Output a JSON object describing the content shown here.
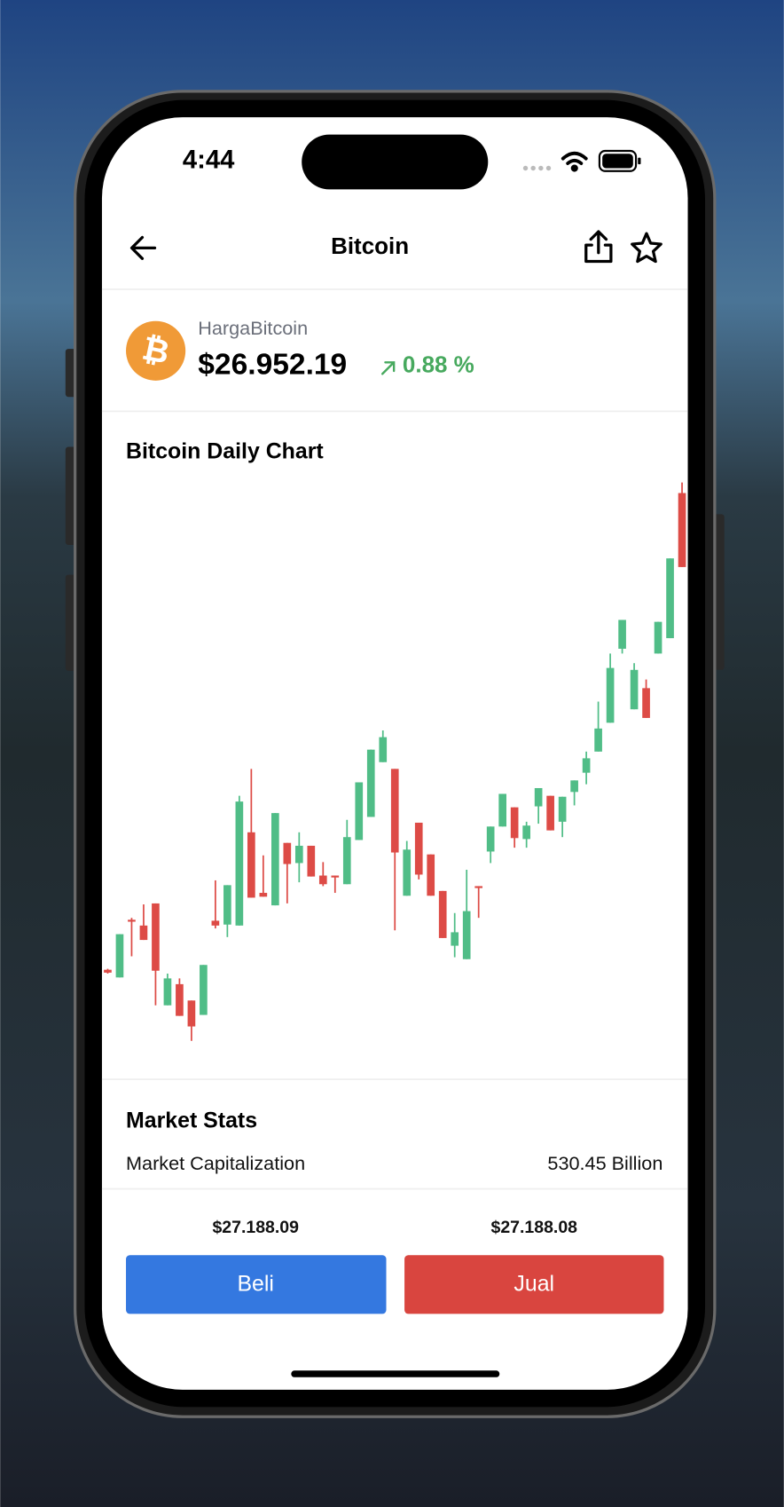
{
  "status_bar": {
    "time": "4:44"
  },
  "header": {
    "title": "Bitcoin"
  },
  "coin": {
    "label": "HargaBitcoin",
    "price": "$26.952.19",
    "change": "0.88 %"
  },
  "chart_data": {
    "type": "candlestick",
    "title": "Bitcoin Daily Chart",
    "up_color": "#50bd87",
    "down_color": "#dd4b46",
    "open": [
      91,
      83,
      143,
      137,
      160,
      54,
      76,
      59,
      44,
      142,
      138,
      137,
      234,
      171,
      158,
      223,
      202,
      220,
      189,
      189,
      180,
      226,
      250,
      307,
      300,
      168,
      244,
      211,
      173,
      116,
      102,
      178,
      214,
      240,
      260,
      227,
      261,
      272,
      245,
      276,
      296,
      318,
      348,
      425,
      362,
      384,
      420,
      436,
      587
    ],
    "high": [
      92,
      128,
      145,
      159,
      160,
      87,
      82,
      59,
      96,
      184,
      179,
      272,
      300,
      210,
      254,
      223,
      234,
      220,
      203,
      189,
      247,
      286,
      320,
      340,
      300,
      225,
      244,
      211,
      173,
      150,
      195,
      178,
      240,
      274,
      260,
      245,
      280,
      272,
      271,
      288,
      318,
      370,
      420,
      455,
      410,
      393,
      453,
      519,
      598
    ],
    "low": [
      87,
      83,
      105,
      122,
      54,
      54,
      43,
      17,
      44,
      134,
      125,
      137,
      166,
      167,
      158,
      160,
      182,
      188,
      178,
      171,
      180,
      226,
      250,
      307,
      132,
      168,
      185,
      168,
      124,
      104,
      102,
      145,
      202,
      240,
      218,
      218,
      243,
      236,
      229,
      262,
      284,
      318,
      348,
      420,
      362,
      353,
      420,
      436,
      510
    ],
    "close": [
      88,
      128,
      141,
      122,
      90,
      82,
      43,
      32,
      96,
      137,
      179,
      266,
      166,
      167,
      254,
      201,
      220,
      188,
      180,
      187,
      229,
      286,
      320,
      333,
      213,
      216,
      190,
      168,
      124,
      130,
      152,
      176,
      240,
      274,
      228,
      241,
      280,
      236,
      271,
      288,
      311,
      342,
      405,
      455,
      403,
      353,
      453,
      519,
      510
    ]
  },
  "market_stats": {
    "title": "Market Stats",
    "rows": [
      {
        "label": "Market Capitalization",
        "value": "530.45 Billion"
      }
    ]
  },
  "trade": {
    "buy": {
      "price": "$27.188.09",
      "label": "Beli"
    },
    "sell": {
      "price": "$27.188.08",
      "label": "Jual"
    }
  }
}
